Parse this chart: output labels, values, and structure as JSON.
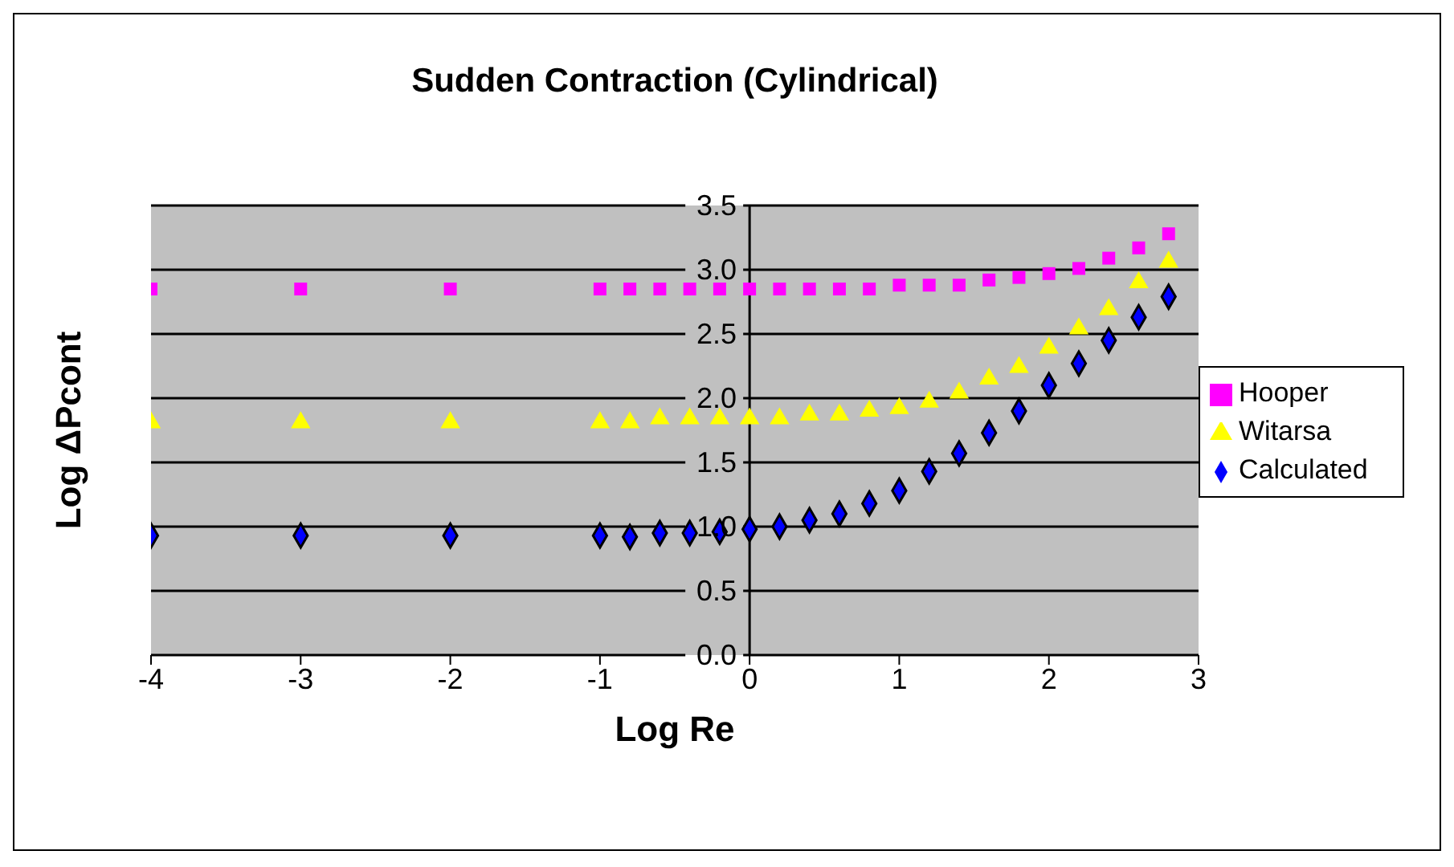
{
  "chart_data": {
    "type": "scatter",
    "title": "Sudden Contraction (Cylindrical)",
    "xlabel": "Log Re",
    "ylabel": "Log ΔPcont",
    "x": [
      -4,
      -3,
      -2,
      -1,
      -0.8,
      -0.6,
      -0.4,
      -0.2,
      0,
      0.2,
      0.4,
      0.6,
      0.8,
      1.0,
      1.2,
      1.4,
      1.6,
      1.8,
      2.0,
      2.2,
      2.4,
      2.6,
      2.8
    ],
    "series": [
      {
        "name": "Hooper",
        "color": "#ff00ff",
        "marker": "square",
        "values": [
          2.85,
          2.85,
          2.85,
          2.85,
          2.85,
          2.85,
          2.85,
          2.85,
          2.85,
          2.85,
          2.85,
          2.85,
          2.85,
          2.88,
          2.88,
          2.88,
          2.92,
          2.94,
          2.97,
          3.01,
          3.09,
          3.17,
          3.28
        ]
      },
      {
        "name": "Witarsa",
        "color": "#ffff00",
        "marker": "triangle",
        "values": [
          1.81,
          1.81,
          1.81,
          1.81,
          1.81,
          1.84,
          1.84,
          1.84,
          1.84,
          1.84,
          1.87,
          1.87,
          1.9,
          1.92,
          1.97,
          2.04,
          2.15,
          2.24,
          2.39,
          2.54,
          2.69,
          2.9,
          3.06
        ]
      },
      {
        "name": "Calculated",
        "color": "#0000ff",
        "marker": "diamond",
        "values": [
          0.93,
          0.93,
          0.93,
          0.93,
          0.92,
          0.95,
          0.95,
          0.96,
          0.98,
          1.0,
          1.05,
          1.1,
          1.18,
          1.28,
          1.43,
          1.57,
          1.73,
          1.9,
          2.1,
          2.27,
          2.45,
          2.63,
          2.79
        ]
      }
    ],
    "xlim": [
      -4,
      3
    ],
    "xticks": [
      -4,
      -3,
      -2,
      -1,
      0,
      1,
      2,
      3
    ],
    "ylim": [
      0,
      3.5
    ],
    "yticks": [
      {
        "value": 0,
        "label": "0.0"
      },
      {
        "value": 0.5,
        "label": "0.5"
      },
      {
        "value": 1,
        "label": "1.0"
      },
      {
        "value": 1.5,
        "label": "1.5"
      },
      {
        "value": 2,
        "label": "2.0"
      },
      {
        "value": 2.5,
        "label": "2.5"
      },
      {
        "value": 3,
        "label": "3.0"
      },
      {
        "value": 3.5,
        "label": "3.5"
      }
    ],
    "grid": "y",
    "legend": "right"
  }
}
